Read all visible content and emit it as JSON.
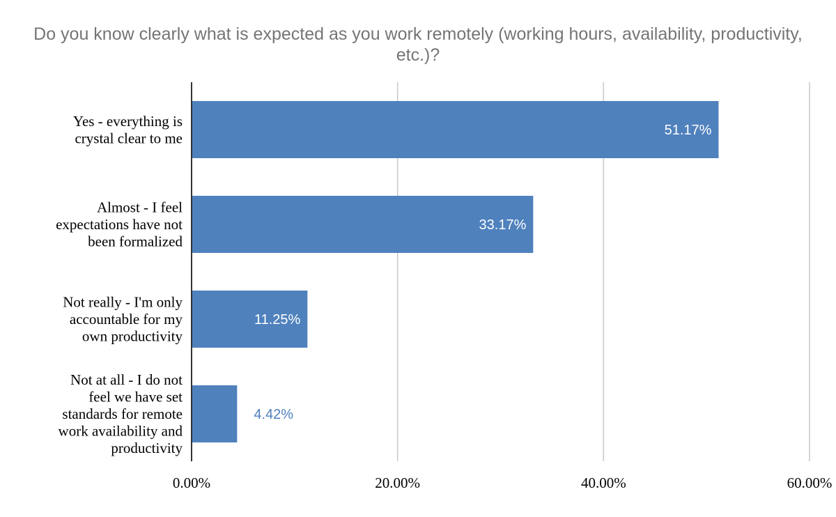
{
  "chart_data": {
    "type": "bar",
    "orientation": "horizontal",
    "title": "Do you know clearly what is expected as you work remotely (working hours, availability, productivity, etc.)?",
    "categories": [
      [
        "Yes - everything is",
        "crystal clear to me"
      ],
      [
        "Almost - I feel",
        "expectations have not",
        "been formalized"
      ],
      [
        "Not really - I'm only",
        "accountable for my",
        "own productivity"
      ],
      [
        "Not at all - I do not",
        "feel we have set",
        "standards for remote",
        "work availability and",
        "productivity"
      ]
    ],
    "values": [
      51.17,
      33.17,
      11.25,
      4.42
    ],
    "value_labels": [
      "51.17%",
      "33.17%",
      "11.25%",
      "4.42%"
    ],
    "xlim": [
      0,
      60
    ],
    "x_ticks": [
      "0.00%",
      "20.00%",
      "40.00%",
      "60.00%"
    ],
    "grid": true,
    "legend": "none",
    "colors": {
      "bar": "#4f81bd",
      "title": "#757575",
      "grid": "#c8c8c8",
      "axis": "#333333",
      "label_inside": "#ffffff",
      "label_outside": "#4f81bd"
    }
  }
}
